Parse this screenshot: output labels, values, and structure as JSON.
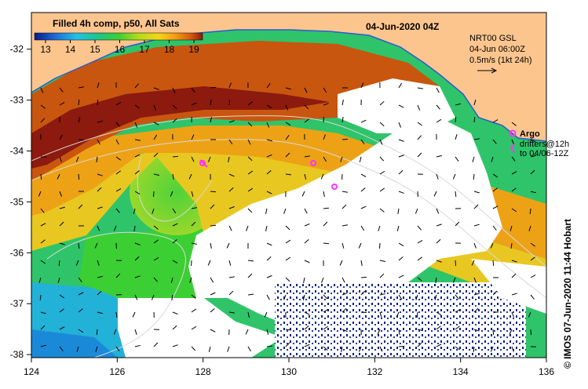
{
  "map": {
    "date_label": "04-Jun-2020 04Z",
    "colorbar": {
      "title": "Filled 4h comp, p50, All Sats",
      "ticks": [
        "13",
        "14",
        "15",
        "16",
        "17",
        "18",
        "19"
      ],
      "colors": [
        "#0a1a8c",
        "#1a6ad6",
        "#22c0e8",
        "#1fc48a",
        "#3ccf34",
        "#b4dd1a",
        "#f2d61a",
        "#f29a12",
        "#d45a10",
        "#8c1a0e"
      ]
    },
    "legend": {
      "source": "NRT00 GSL",
      "time": "04-Jun 06:00Z",
      "scale": "0.5m/s (1kt 24h)"
    },
    "argo": {
      "label": "Argo",
      "drifters_line1": "drifters@12h",
      "drifters_line2": "to 04/06-12Z"
    },
    "axes": {
      "x_ticks": [
        "124",
        "126",
        "128",
        "130",
        "132",
        "134",
        "136"
      ],
      "y_ticks": [
        "-32",
        "-33",
        "-34",
        "-35",
        "-36",
        "-37",
        "-38"
      ]
    },
    "credit": "© IMOS 07-Jun-2020 11:44 Hobart",
    "colors": {
      "land": "#fdc58e",
      "cloud": "#ffffff",
      "argo": "#ff33ff",
      "contour": "#d8d8d8"
    }
  }
}
